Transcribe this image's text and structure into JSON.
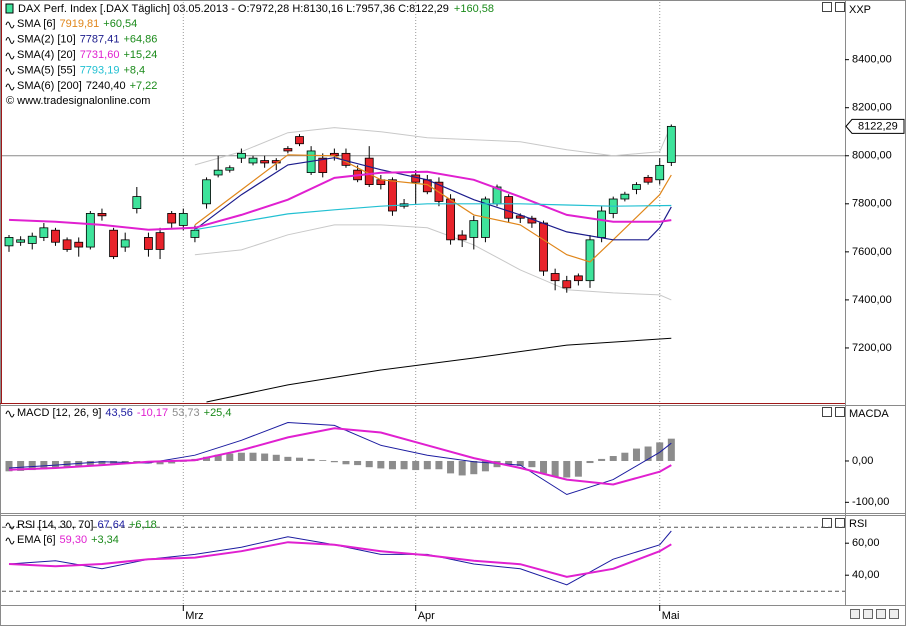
{
  "chart_data": [
    {
      "type": "candlestick",
      "title": "DAX Perf. Index [.DAX  Täglich] 03.05.2013 - O:7972,28 H:8130,16 L:7957,36 C:8122,29",
      "title_change": "+160,58",
      "copyright": "© www.tradesignalonline.com",
      "axis_label": "XXP",
      "categories": [
        null,
        null,
        null,
        null,
        null,
        null,
        null,
        null,
        null,
        null,
        null,
        null,
        null,
        null,
        null,
        "Mrz",
        null,
        null,
        null,
        null,
        null,
        null,
        null,
        null,
        null,
        null,
        null,
        null,
        null,
        null,
        null,
        null,
        null,
        null,
        null,
        "Apr",
        null,
        null,
        null,
        null,
        null,
        null,
        null,
        null,
        null,
        null,
        null,
        null,
        null,
        null,
        null,
        null,
        null,
        null,
        null,
        null,
        "Mai",
        null
      ],
      "open": [
        7625,
        7640,
        7635,
        7660,
        7690,
        7650,
        7640,
        7620,
        7760,
        7690,
        7620,
        7780,
        7660,
        7680,
        7760,
        7710,
        7660,
        7800,
        7920,
        7940,
        7990,
        7970,
        7980,
        7980,
        8030,
        8080,
        7930,
        7990,
        8010,
        8010,
        7940,
        7990,
        7900,
        7900,
        7790,
        7920,
        7900,
        7890,
        7820,
        7670,
        7660,
        7660,
        7800,
        7830,
        7750,
        7740,
        7720,
        7510,
        7480,
        7500,
        7480,
        7660,
        7760,
        7820,
        7860,
        7910,
        7900,
        7972.28
      ],
      "high": [
        7670,
        7665,
        7680,
        7720,
        7700,
        7660,
        7660,
        7770,
        7780,
        7700,
        7680,
        7870,
        7680,
        7700,
        7770,
        7780,
        7710,
        7910,
        8000,
        7960,
        8030,
        8000,
        8000,
        7990,
        8040,
        8090,
        8040,
        8010,
        8030,
        8030,
        7960,
        8040,
        7920,
        7910,
        7820,
        7940,
        7920,
        7910,
        7840,
        7690,
        7750,
        7830,
        7880,
        7840,
        7760,
        7750,
        7730,
        7530,
        7500,
        7510,
        7670,
        7790,
        7830,
        7850,
        7890,
        7920,
        7990,
        8130.16
      ],
      "low": [
        7600,
        7625,
        7610,
        7645,
        7625,
        7600,
        7580,
        7610,
        7730,
        7570,
        7600,
        7760,
        7580,
        7570,
        7700,
        7690,
        7640,
        7780,
        7910,
        7930,
        7970,
        7960,
        7950,
        7940,
        8010,
        8040,
        7920,
        7910,
        7980,
        7950,
        7890,
        7870,
        7860,
        7750,
        7780,
        7800,
        7840,
        7790,
        7630,
        7620,
        7610,
        7640,
        7790,
        7720,
        7720,
        7700,
        7500,
        7440,
        7430,
        7460,
        7450,
        7640,
        7740,
        7810,
        7840,
        7880,
        7880,
        7957.36
      ],
      "close": [
        7660,
        7650,
        7665,
        7700,
        7640,
        7610,
        7620,
        7760,
        7750,
        7580,
        7650,
        7830,
        7610,
        7610,
        7720,
        7760,
        7690,
        7900,
        7940,
        7950,
        8010,
        7990,
        7970,
        7970,
        8020,
        8050,
        8020,
        7930,
        8000,
        7960,
        7900,
        7880,
        7880,
        7770,
        7800,
        7890,
        7850,
        7810,
        7650,
        7650,
        7730,
        7820,
        7870,
        7740,
        7740,
        7720,
        7520,
        7480,
        7450,
        7480,
        7650,
        7770,
        7820,
        7840,
        7880,
        7890,
        7960,
        8122.29
      ],
      "close_label": "8122,29",
      "up_color": "#3ee39b",
      "down_color": "#e8232b",
      "hline": 8000,
      "ylim": [
        6975,
        8640
      ],
      "yticks": [
        {
          "value": 7200,
          "label": "7200,00"
        },
        {
          "value": 7400,
          "label": "7400,00"
        },
        {
          "value": 7600,
          "label": "7600,00"
        },
        {
          "value": 7800,
          "label": "7800,00"
        },
        {
          "value": 8000,
          "label": "8000,00"
        },
        {
          "value": 8200,
          "label": "8200,00"
        },
        {
          "value": 8400,
          "label": "8400,00"
        }
      ],
      "grid": true,
      "series": [
        {
          "color": "#c8c8c8",
          "x": [
            16,
            20,
            24,
            28,
            32,
            36,
            40,
            44,
            48,
            52,
            56,
            57
          ],
          "values": [
            7962,
            8017,
            8096,
            8117,
            8100,
            8075,
            8067,
            8058,
            8025,
            8000,
            8017,
            8129
          ]
        },
        {
          "color": "#c8c8c8",
          "x": [
            16,
            20,
            24,
            28,
            32,
            36,
            40,
            44,
            48,
            52,
            56,
            57
          ],
          "values": [
            7588,
            7608,
            7671,
            7712,
            7712,
            7700,
            7629,
            7525,
            7442,
            7429,
            7421,
            7400
          ]
        },
        {
          "name": "SMA [6]",
          "color": "#e0861a",
          "legend_value": "7919,81",
          "legend_change": "+60,54",
          "x": [
            16,
            20,
            24,
            28,
            32,
            36,
            40,
            44,
            48,
            50,
            52,
            56,
            57
          ],
          "values": [
            7712,
            7858,
            8004,
            8000,
            7900,
            7880,
            7754,
            7712,
            7588,
            7558,
            7650,
            7838,
            7920
          ]
        },
        {
          "name": "SMA(2) [10]",
          "color": "#1c1c8c",
          "legend_value": "7787,41",
          "legend_change": "+64,86",
          "x": [
            16,
            20,
            24,
            28,
            32,
            36,
            40,
            44,
            48,
            52,
            55,
            56,
            57
          ],
          "values": [
            7692,
            7838,
            7962,
            7992,
            7942,
            7900,
            7817,
            7754,
            7683,
            7650,
            7650,
            7700,
            7787
          ]
        },
        {
          "name": "SMA(4) [20]",
          "color": "#e020d0",
          "legend_value": "7731,60",
          "legend_change": "+15,24",
          "x": [
            0,
            4,
            8,
            12,
            16,
            20,
            24,
            28,
            32,
            36,
            40,
            44,
            48,
            52,
            56,
            57
          ],
          "values": [
            7733,
            7725,
            7712,
            7692,
            7700,
            7754,
            7817,
            7908,
            7929,
            7933,
            7900,
            7829,
            7754,
            7725,
            7725,
            7732
          ]
        },
        {
          "name": "SMA(5) [55]",
          "color": "#22c0d2",
          "legend_value": "7793,19",
          "legend_change": "+8,4",
          "x": [
            16,
            20,
            24,
            28,
            32,
            36,
            40,
            44,
            48,
            52,
            57
          ],
          "values": [
            7692,
            7725,
            7758,
            7775,
            7790,
            7800,
            7800,
            7800,
            7795,
            7790,
            7793
          ]
        },
        {
          "name": "SMA(6) [200]",
          "color": "#000000",
          "legend_value": "7240,40",
          "legend_change": "+7,22",
          "x": [
            17,
            24,
            32,
            40,
            48,
            57
          ],
          "values": [
            6975,
            7046,
            7108,
            7158,
            7212,
            7240
          ]
        }
      ]
    },
    {
      "type": "macd",
      "label": "MACD [12, 26, 9]",
      "legend_change": "+25,4",
      "axis_label": "MACDA",
      "ylim": [
        -121,
        133
      ],
      "yticks": [
        {
          "value": 0,
          "label": "0,00"
        },
        {
          "value": -100,
          "label": "-100,00"
        }
      ],
      "grid": true,
      "hist": {
        "color": "#8c8c8c",
        "legend_value": "53,73",
        "values": [
          -25,
          -24,
          -22,
          -20,
          -18,
          -15,
          -12,
          -10,
          -8,
          -6,
          -5,
          -5,
          -6,
          -8,
          -6,
          -2,
          5,
          10,
          15,
          18,
          20,
          20,
          18,
          15,
          10,
          8,
          5,
          2,
          -3,
          -8,
          -10,
          -15,
          -18,
          -20,
          -20,
          -22,
          -20,
          -20,
          -30,
          -35,
          -32,
          -25,
          -15,
          -10,
          -12,
          -15,
          -30,
          -38,
          -40,
          -38,
          -5,
          5,
          12,
          20,
          30,
          35,
          45,
          54
        ]
      },
      "series": [
        {
          "color": "#1c1ca0",
          "legend_value": "43,56",
          "x": [
            0,
            4,
            8,
            12,
            16,
            20,
            24,
            28,
            32,
            36,
            40,
            44,
            48,
            52,
            56,
            57
          ],
          "values": [
            -17,
            -10,
            -2,
            -5,
            14,
            50,
            93,
            86,
            38,
            14,
            -2,
            -10,
            -81,
            -45,
            21,
            43
          ]
        },
        {
          "color": "#e020d0",
          "legend_value": "-10,17",
          "x": [
            0,
            4,
            8,
            12,
            16,
            20,
            24,
            28,
            32,
            36,
            40,
            44,
            48,
            52,
            56,
            57
          ],
          "values": [
            -21,
            -17,
            -10,
            -2,
            2,
            26,
            57,
            79,
            69,
            38,
            7,
            -17,
            -45,
            -57,
            -26,
            -10
          ]
        }
      ]
    },
    {
      "type": "line",
      "axis_label": "RSI",
      "ylim": [
        22,
        77
      ],
      "yticks": [
        {
          "value": 40,
          "label": "40,00"
        },
        {
          "value": 60,
          "label": "60,00"
        }
      ],
      "levels": [
        70,
        30
      ],
      "grid": true,
      "series": [
        {
          "name": "RSI [14, 30, 70]",
          "color": "#1c1ca0",
          "legend_value": "67,64",
          "legend_change": "+6,18",
          "x": [
            0,
            4,
            8,
            12,
            16,
            20,
            24,
            28,
            32,
            36,
            40,
            44,
            48,
            52,
            56,
            57
          ],
          "values": [
            47,
            49,
            44,
            50,
            53,
            57.5,
            64,
            59,
            53,
            53,
            47,
            44,
            34,
            50,
            59,
            67.6
          ]
        },
        {
          "name": "EMA [6]",
          "color": "#e020d0",
          "legend_value": "59,30",
          "legend_change": "+3,34",
          "x": [
            0,
            4,
            8,
            12,
            16,
            20,
            24,
            28,
            32,
            36,
            40,
            44,
            48,
            52,
            56,
            57
          ],
          "values": [
            47,
            45.6,
            47,
            50,
            51,
            55,
            60.6,
            59,
            55,
            52.5,
            49,
            46.9,
            39,
            44,
            55,
            59.3
          ]
        }
      ]
    }
  ]
}
